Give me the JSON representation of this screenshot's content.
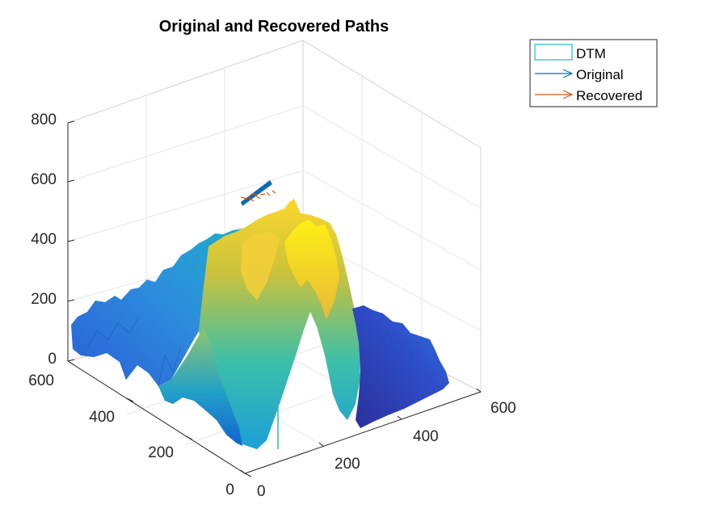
{
  "chart_data": {
    "type": "surface",
    "title": "Original and Recovered Paths",
    "axes": {
      "x": {
        "range": [
          0,
          600
        ],
        "ticks": [
          "0",
          "200",
          "400",
          "600"
        ]
      },
      "y": {
        "range": [
          0,
          600
        ],
        "ticks": [
          "0",
          "200",
          "400",
          "600"
        ]
      },
      "z": {
        "range": [
          0,
          800
        ],
        "ticks": [
          "0",
          "200",
          "400",
          "600",
          "800"
        ]
      },
      "grid": true,
      "box": true
    },
    "legend": {
      "position": "top-right",
      "entries": [
        {
          "label": "DTM",
          "color": "#22b8c8",
          "marker": "rect"
        },
        {
          "label": "Original",
          "color": "#0072bd",
          "marker": "arrow"
        },
        {
          "label": "Recovered",
          "color": "#d95319",
          "marker": "arrow"
        }
      ]
    },
    "series": [
      {
        "name": "DTM",
        "kind": "surface",
        "colormap": "parula",
        "z_range": [
          0,
          520
        ]
      },
      {
        "name": "Original",
        "kind": "path",
        "color": "#0072bd"
      },
      {
        "name": "Recovered",
        "kind": "path",
        "color": "#d95319"
      }
    ]
  }
}
